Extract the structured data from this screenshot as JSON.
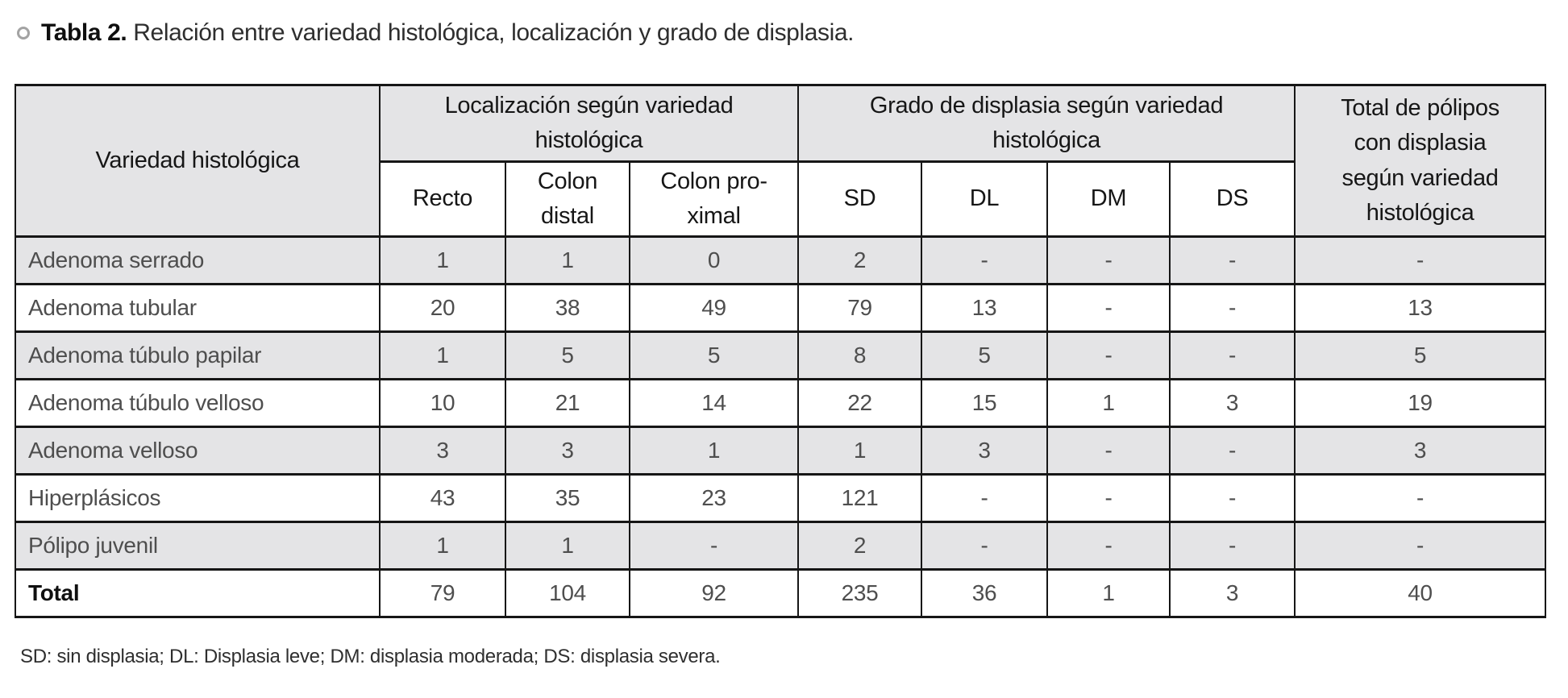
{
  "title": {
    "label": "Tabla 2.",
    "text": "Relación entre variedad histológica, localización y grado de displasia."
  },
  "table": {
    "header": {
      "variedad": "Variedad histológica",
      "localizacion_group": "Localización según variedad\nhistológica",
      "grado_group": "Grado de displasia según variedad\nhistológica",
      "total_polipos": "Total de pólipos\ncon displasia\nsegún variedad\nhistológica",
      "sub_cols": [
        "Recto",
        "Colon\ndistal",
        "Colon pro-\nximal",
        "SD",
        "DL",
        "DM",
        "DS"
      ]
    },
    "rows": [
      {
        "label": "Adenoma serrado",
        "bold": false,
        "values": [
          "1",
          "1",
          "0",
          "2",
          "-",
          "-",
          "-",
          "-"
        ]
      },
      {
        "label": "Adenoma tubular",
        "bold": false,
        "values": [
          "20",
          "38",
          "49",
          "79",
          "13",
          "-",
          "-",
          "13"
        ]
      },
      {
        "label": "Adenoma túbulo papilar",
        "bold": false,
        "values": [
          "1",
          "5",
          "5",
          "8",
          "5",
          "-",
          "-",
          "5"
        ]
      },
      {
        "label": "Adenoma túbulo velloso",
        "bold": false,
        "values": [
          "10",
          "21",
          "14",
          "22",
          "15",
          "1",
          "3",
          "19"
        ]
      },
      {
        "label": "Adenoma velloso",
        "bold": false,
        "values": [
          "3",
          "3",
          "1",
          "1",
          "3",
          "-",
          "-",
          "3"
        ]
      },
      {
        "label": "Hiperplásicos",
        "bold": false,
        "values": [
          "43",
          "35",
          "23",
          "121",
          "-",
          "-",
          "-",
          "-"
        ]
      },
      {
        "label": "Pólipo juvenil",
        "bold": false,
        "values": [
          "1",
          "1",
          "-",
          "2",
          "-",
          "-",
          "-",
          "-"
        ]
      },
      {
        "label": "Total",
        "bold": true,
        "values": [
          "79",
          "104",
          "92",
          "235",
          "36",
          "1",
          "3",
          "40"
        ]
      }
    ]
  },
  "footnote": "SD: sin displasia; DL: Displasia leve; DM: displasia moderada; DS: displasia severa.",
  "colors": {
    "row_stripe": "#e4e4e6",
    "border": "#161616",
    "background": "#ffffff"
  }
}
